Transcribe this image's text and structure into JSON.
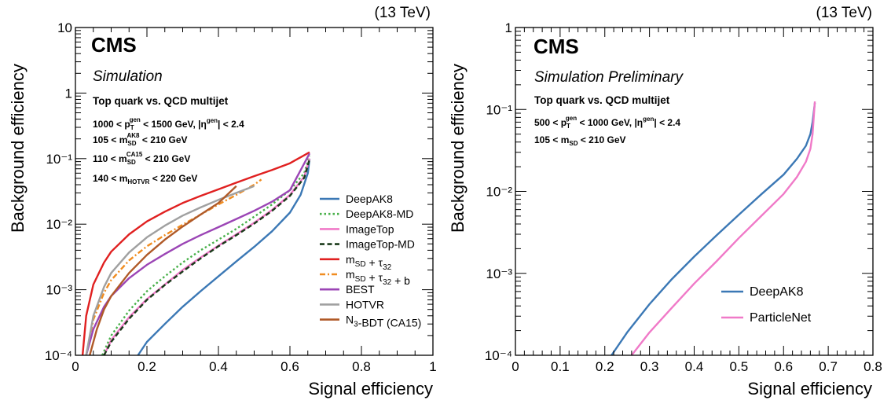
{
  "chart_data": [
    {
      "type": "line",
      "experiment": "CMS",
      "status": "Simulation",
      "energy": "(13 TeV)",
      "xlabel": "Signal efficiency",
      "ylabel": "Background efficiency",
      "xlim": [
        0,
        1
      ],
      "ylim": [
        0.0001,
        10
      ],
      "yscale": "log",
      "x_tick_labels": [
        "0",
        "0.2",
        "0.4",
        "0.6",
        "0.8",
        "1"
      ],
      "y_tick_labels": [
        "10⁻⁴",
        "10⁻³",
        "10⁻²",
        "10⁻¹",
        "1",
        "10"
      ],
      "annotations": {
        "title": "Top quark vs. QCD multijet",
        "line1": "1000 < p_T^gen < 1500 GeV, |η^gen| < 2.4",
        "line2": "105 < m_SD^AK8 < 210 GeV",
        "line3": "110 < m_SD^CA15 < 210 GeV",
        "line4": "140 < m_HOTVR < 220 GeV"
      },
      "legend_position": "bottom-right",
      "series": [
        {
          "name": "DeepAK8",
          "color": "#3b78b5",
          "dash": "solid",
          "x": [
            0.175,
            0.2,
            0.25,
            0.3,
            0.35,
            0.4,
            0.45,
            0.5,
            0.55,
            0.6,
            0.63,
            0.65,
            0.655
          ],
          "y": [
            0.0001,
            0.00016,
            0.0003,
            0.00055,
            0.00095,
            0.0016,
            0.0027,
            0.0045,
            0.0078,
            0.015,
            0.028,
            0.06,
            0.1
          ]
        },
        {
          "name": "DeepAK8-MD",
          "color": "#48b04a",
          "dash": "dotted",
          "x": [
            0.075,
            0.1,
            0.15,
            0.2,
            0.25,
            0.3,
            0.35,
            0.4,
            0.45,
            0.5,
            0.55,
            0.6,
            0.64,
            0.655
          ],
          "y": [
            0.0001,
            0.0002,
            0.00048,
            0.00095,
            0.0016,
            0.0026,
            0.004,
            0.0058,
            0.0085,
            0.013,
            0.02,
            0.033,
            0.06,
            0.11
          ]
        },
        {
          "name": "ImageTop",
          "color": "#f07ac8",
          "dash": "solid",
          "x": [
            0.08,
            0.1,
            0.15,
            0.2,
            0.25,
            0.3,
            0.35,
            0.4,
            0.45,
            0.5,
            0.55,
            0.6,
            0.64,
            0.655
          ],
          "y": [
            0.0001,
            0.00017,
            0.00038,
            0.00072,
            0.0012,
            0.002,
            0.0031,
            0.0047,
            0.007,
            0.0105,
            0.0165,
            0.028,
            0.053,
            0.1
          ]
        },
        {
          "name": "ImageTop-MD",
          "color": "#1a3a1a",
          "dash": "dashed",
          "x": [
            0.08,
            0.1,
            0.15,
            0.2,
            0.25,
            0.3,
            0.35,
            0.4,
            0.45,
            0.5,
            0.55,
            0.6,
            0.64,
            0.655
          ],
          "y": [
            0.0001,
            0.00016,
            0.00036,
            0.0007,
            0.00118,
            0.0019,
            0.003,
            0.0046,
            0.0068,
            0.0102,
            0.016,
            0.027,
            0.051,
            0.098
          ]
        },
        {
          "name": "m_SD + τ_32",
          "color": "#e02020",
          "dash": "solid",
          "x": [
            0.02,
            0.03,
            0.05,
            0.08,
            0.1,
            0.15,
            0.2,
            0.25,
            0.3,
            0.35,
            0.4,
            0.45,
            0.5,
            0.55,
            0.6,
            0.655
          ],
          "y": [
            0.0001,
            0.0004,
            0.0012,
            0.0026,
            0.0038,
            0.007,
            0.011,
            0.0155,
            0.021,
            0.027,
            0.034,
            0.043,
            0.054,
            0.067,
            0.085,
            0.125
          ]
        },
        {
          "name": "m_SD + τ_32 + b",
          "color": "#f08c20",
          "dash": "dashdot",
          "x": [
            0.03,
            0.05,
            0.08,
            0.1,
            0.15,
            0.2,
            0.25,
            0.3,
            0.35,
            0.4,
            0.45,
            0.5,
            0.52
          ],
          "y": [
            0.0001,
            0.00035,
            0.0009,
            0.0014,
            0.0028,
            0.0046,
            0.0068,
            0.0098,
            0.014,
            0.02,
            0.028,
            0.04,
            0.048
          ]
        },
        {
          "name": "BEST",
          "color": "#9b45b5",
          "dash": "solid",
          "x": [
            0.03,
            0.05,
            0.08,
            0.1,
            0.15,
            0.2,
            0.25,
            0.3,
            0.35,
            0.4,
            0.45,
            0.5,
            0.55,
            0.6,
            0.655
          ],
          "y": [
            0.0001,
            0.00025,
            0.00055,
            0.0008,
            0.0015,
            0.0024,
            0.0035,
            0.005,
            0.0068,
            0.009,
            0.012,
            0.016,
            0.022,
            0.033,
            0.12
          ]
        },
        {
          "name": "HOTVR",
          "color": "#a0a0a0",
          "dash": "solid",
          "x": [
            0.03,
            0.05,
            0.08,
            0.1,
            0.15,
            0.2,
            0.25,
            0.3,
            0.35,
            0.4,
            0.45,
            0.5
          ],
          "y": [
            0.0001,
            0.0004,
            0.0011,
            0.0018,
            0.0037,
            0.0063,
            0.0095,
            0.0135,
            0.018,
            0.0235,
            0.03,
            0.038
          ]
        },
        {
          "name": "N_3-BDT (CA15)",
          "color": "#b05a28",
          "dash": "solid",
          "x": [
            0.04,
            0.06,
            0.08,
            0.1,
            0.15,
            0.2,
            0.25,
            0.3,
            0.35,
            0.4,
            0.45
          ],
          "y": [
            0.0001,
            0.00025,
            0.0005,
            0.0008,
            0.0018,
            0.0034,
            0.0058,
            0.0092,
            0.014,
            0.021,
            0.038
          ]
        }
      ]
    },
    {
      "type": "line",
      "experiment": "CMS",
      "status": "Simulation Preliminary",
      "energy": "(13 TeV)",
      "xlabel": "Signal efficiency",
      "ylabel": "Background efficiency",
      "xlim": [
        0,
        0.8
      ],
      "ylim": [
        0.0001,
        1
      ],
      "yscale": "log",
      "x_tick_labels": [
        "0",
        "0.1",
        "0.2",
        "0.3",
        "0.4",
        "0.5",
        "0.6",
        "0.7",
        "0.8"
      ],
      "y_tick_labels": [
        "10⁻⁴",
        "10⁻³",
        "10⁻²",
        "10⁻¹",
        "1"
      ],
      "annotations": {
        "title": "Top quark vs. QCD multijet",
        "line1": "500 < p_T^gen < 1000 GeV, |η^gen| < 2.4",
        "line2": "105 < m_SD < 210 GeV"
      },
      "legend_position": "bottom-right",
      "series": [
        {
          "name": "DeepAK8",
          "color": "#3b78b5",
          "dash": "solid",
          "x": [
            0.215,
            0.25,
            0.3,
            0.35,
            0.4,
            0.45,
            0.5,
            0.55,
            0.6,
            0.63,
            0.65,
            0.66,
            0.665,
            0.67
          ],
          "y": [
            0.0001,
            0.00019,
            0.00042,
            0.00085,
            0.0016,
            0.0029,
            0.0052,
            0.0092,
            0.016,
            0.025,
            0.036,
            0.05,
            0.07,
            0.12
          ]
        },
        {
          "name": "ParticleNet",
          "color": "#f07ac8",
          "dash": "solid",
          "x": [
            0.26,
            0.3,
            0.35,
            0.4,
            0.45,
            0.5,
            0.55,
            0.6,
            0.63,
            0.65,
            0.66,
            0.665,
            0.67
          ],
          "y": [
            0.0001,
            0.00019,
            0.00038,
            0.00075,
            0.0014,
            0.0027,
            0.005,
            0.0093,
            0.015,
            0.023,
            0.033,
            0.05,
            0.125
          ]
        }
      ]
    }
  ]
}
